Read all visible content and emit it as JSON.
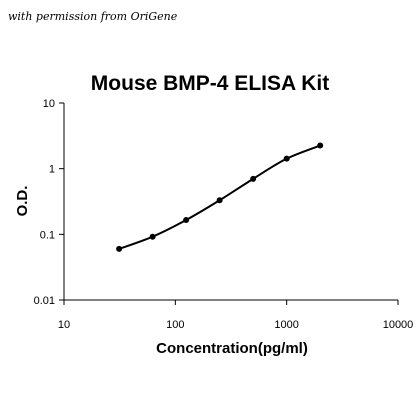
{
  "watermark": "with permission from OriGene",
  "chart_data": {
    "type": "scatter",
    "title": "Mouse BMP-4 ELISA Kit",
    "xlabel": "Concentration(pg/ml)",
    "ylabel": "O.D.",
    "xscale": "log",
    "yscale": "log",
    "xlim": [
      10,
      10000
    ],
    "ylim": [
      0.01,
      10
    ],
    "xticks": [
      10,
      100,
      1000,
      10000
    ],
    "xtick_labels": [
      "10",
      "100",
      "1000",
      "10000"
    ],
    "yticks": [
      0.01,
      0.1,
      1,
      10
    ],
    "ytick_labels": [
      "0.01",
      "0.1",
      "1",
      "10"
    ],
    "grid": false,
    "legend": "none",
    "series": [
      {
        "x": [
          31.25,
          62.5,
          125,
          250,
          500,
          1000,
          2000
        ],
        "y": [
          0.06,
          0.092,
          0.165,
          0.33,
          0.7,
          1.42,
          2.25
        ],
        "fit_curve": true
      }
    ]
  }
}
